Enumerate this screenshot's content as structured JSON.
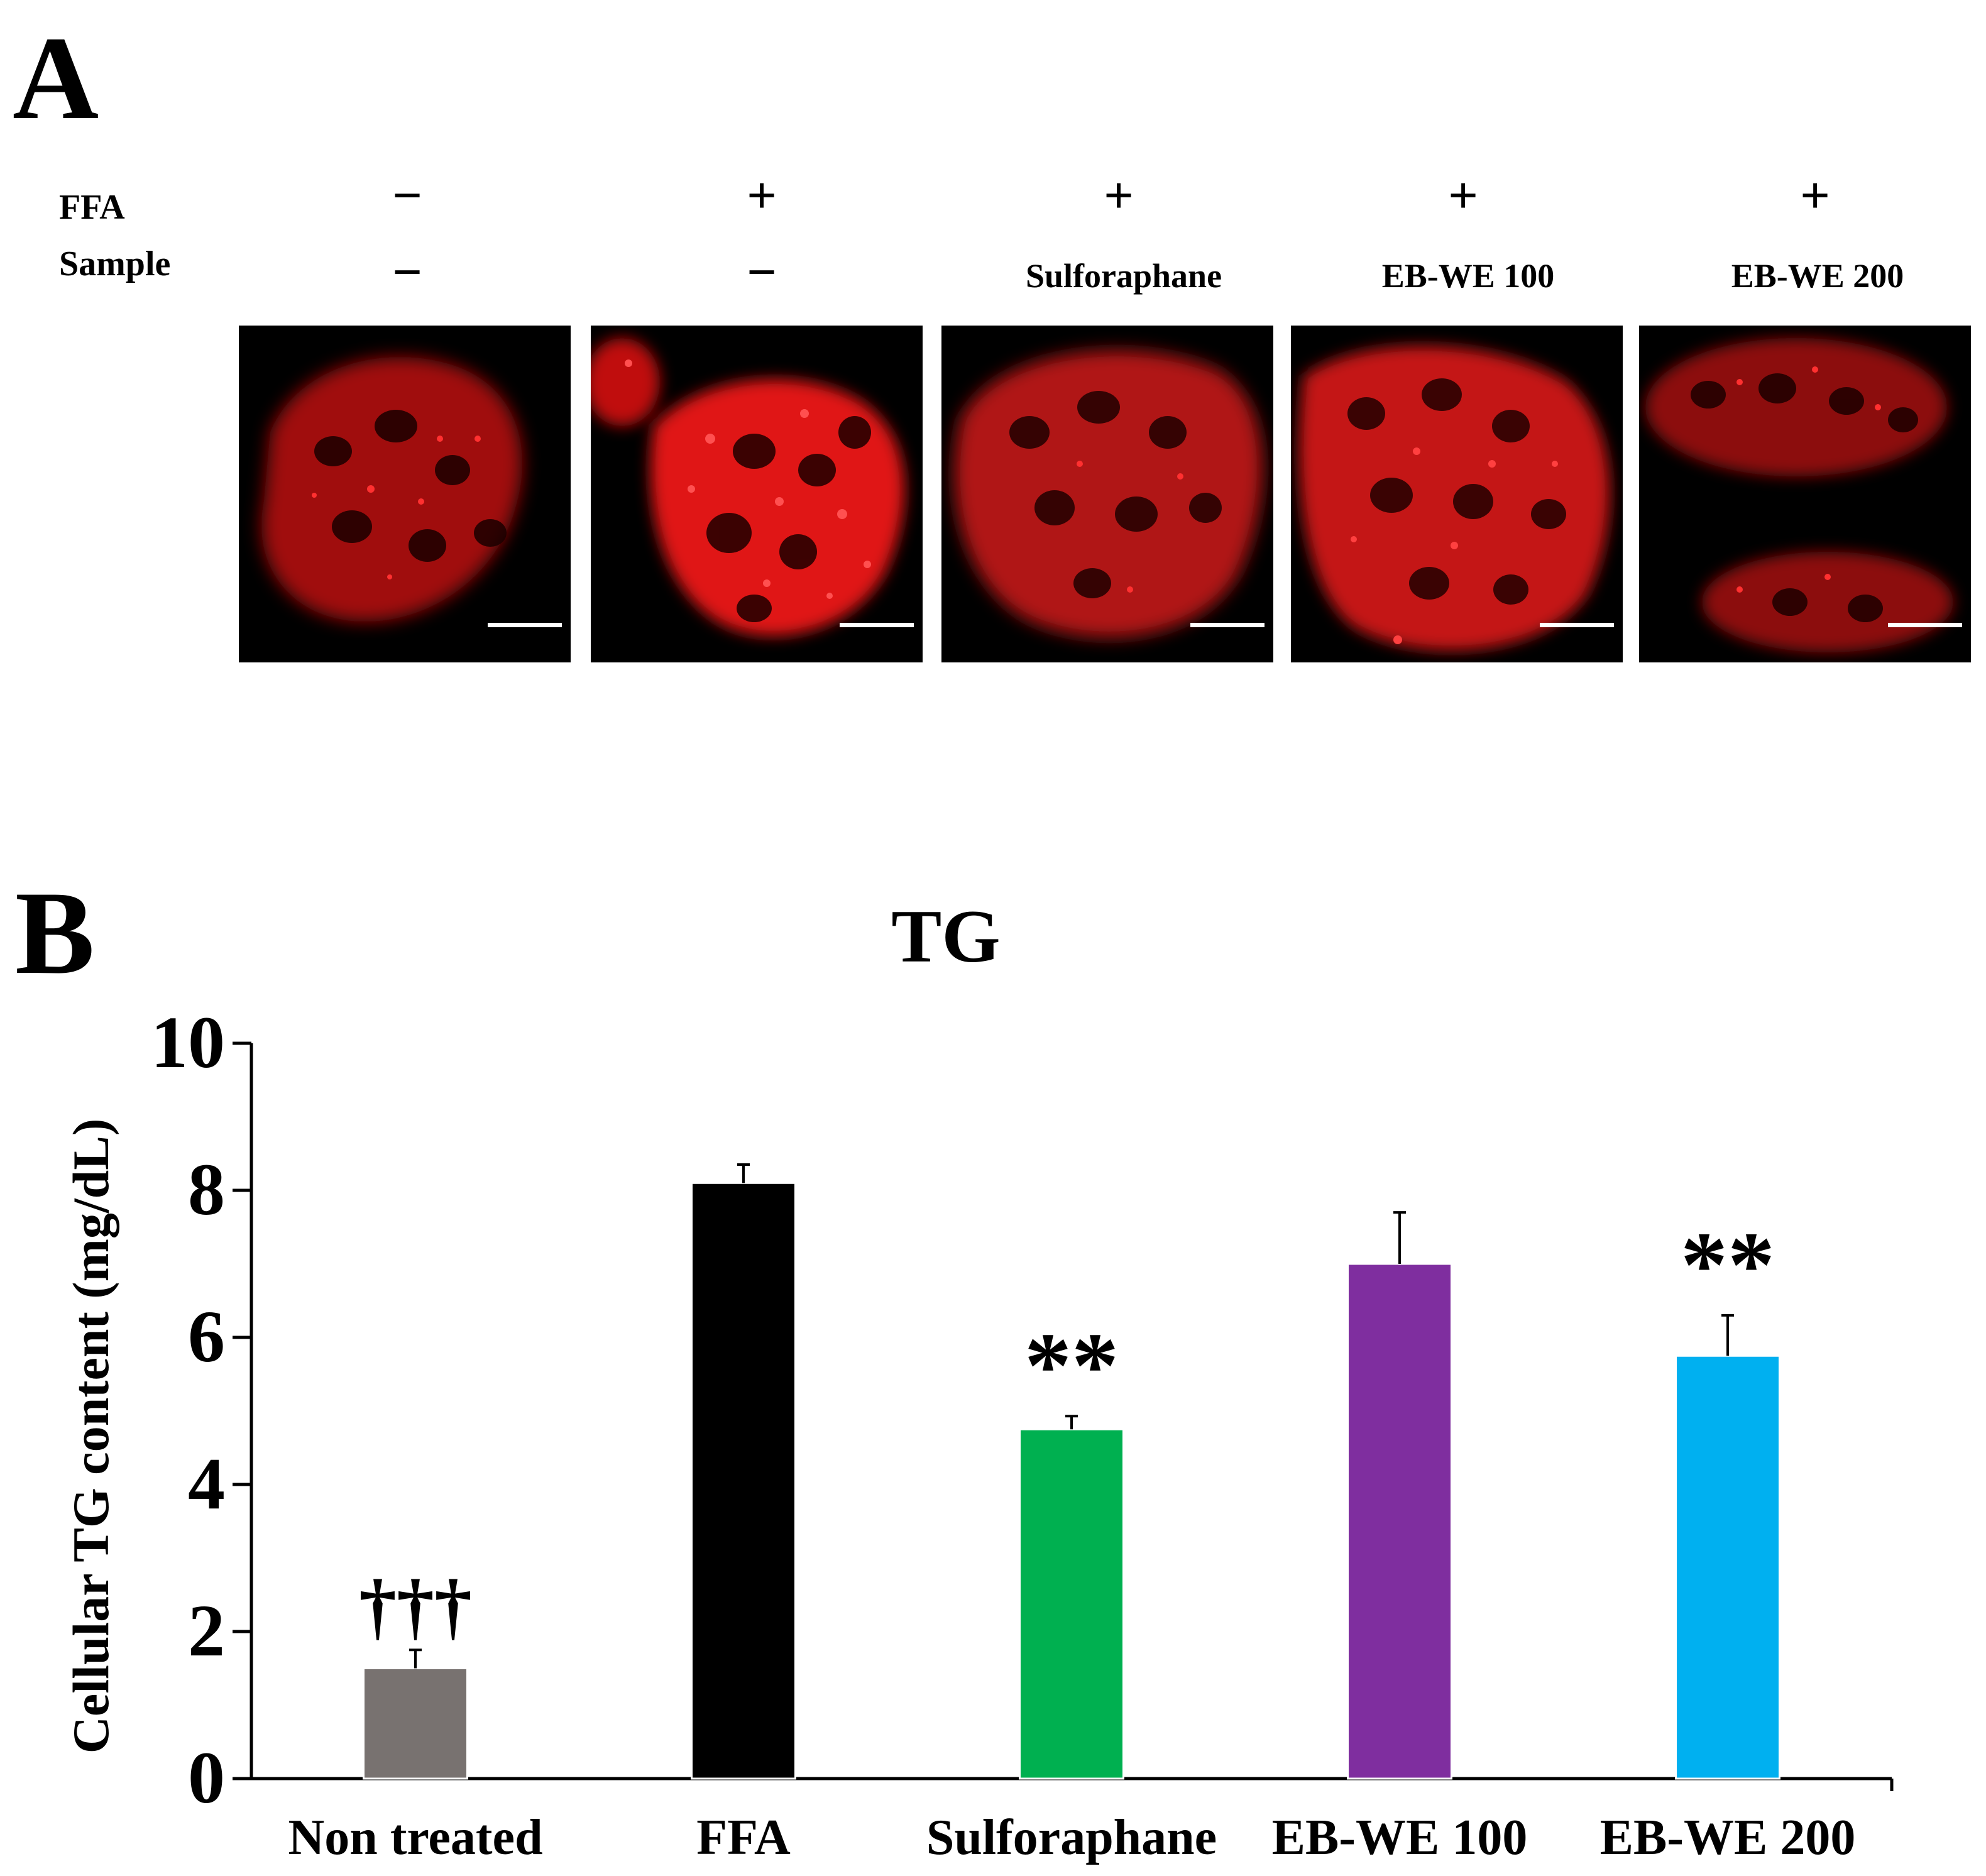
{
  "panel_a": {
    "label": "A",
    "row_labels": {
      "ffa": "FFA",
      "sample": "Sample"
    },
    "columns": [
      {
        "ffa": "−",
        "sample": "−",
        "scale_bar": true
      },
      {
        "ffa": "+",
        "sample": "−",
        "scale_bar": true
      },
      {
        "ffa": "+",
        "sample": "Sulforaphane",
        "scale_bar": true
      },
      {
        "ffa": "+",
        "sample": "EB-WE 100",
        "scale_bar": true
      },
      {
        "ffa": "+",
        "sample": "EB-WE 200",
        "scale_bar": true
      }
    ],
    "stain_color": "#ff1a1a"
  },
  "panel_b": {
    "label": "B"
  },
  "chart_data": {
    "type": "bar",
    "title": "TG",
    "ylabel": "Cellular TG content (mg/dL)",
    "xlabel": "",
    "ylim": [
      0,
      10
    ],
    "yticks": [
      0,
      2,
      4,
      6,
      8,
      10
    ],
    "categories": [
      "Non treated",
      "FFA",
      "Sulforaphane",
      "EB-WE 100",
      "EB-WE 200"
    ],
    "values": [
      1.5,
      8.1,
      4.75,
      7.0,
      5.75
    ],
    "errors": [
      0.25,
      0.25,
      0.18,
      0.7,
      0.55
    ],
    "colors": [
      "#787270",
      "#000000",
      "#00b050",
      "#7f2e9f",
      "#00b0f0"
    ],
    "annotations": [
      "†††",
      "",
      "**",
      "",
      "**"
    ],
    "grid": false,
    "legend": "none"
  }
}
